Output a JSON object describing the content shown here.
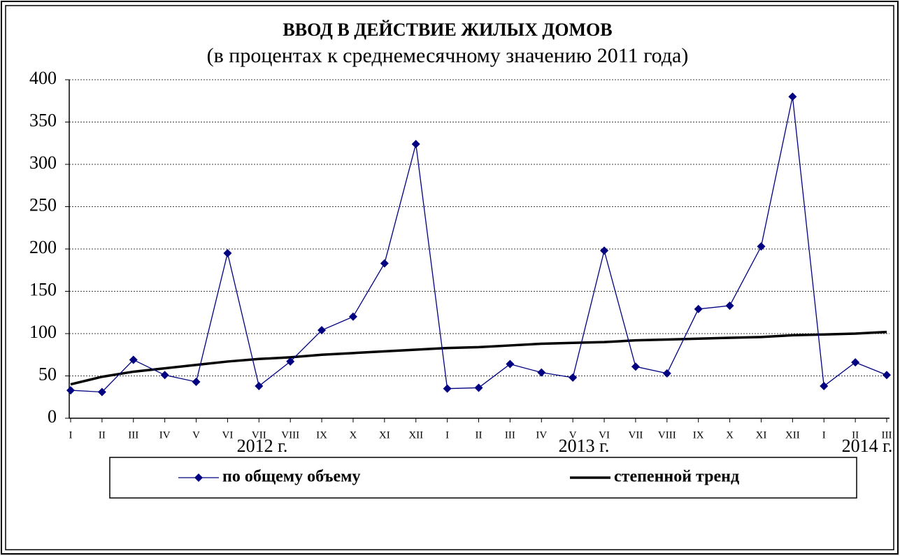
{
  "chart_data": {
    "type": "line",
    "title": "ВВОД  В  ДЕЙСТВИЕ  ЖИЛЫХ  ДОМОВ",
    "subtitle": "(в процентах  к среднемесячному  значению 2011 года)",
    "categories": [
      "I",
      "II",
      "III",
      "IV",
      "V",
      "VI",
      "VII",
      "VIII",
      "IX",
      "X",
      "XI",
      "XII",
      "I",
      "II",
      "III",
      "IV",
      "V",
      "VI",
      "VII",
      "VIII",
      "IX",
      "X",
      "XI",
      "XII",
      "I",
      "II",
      "III"
    ],
    "year_labels": [
      "2012 г.",
      "2013 г.",
      "2014 г."
    ],
    "series": [
      {
        "name": "по общему объему",
        "color": "#000080",
        "marker": "diamond",
        "values": [
          33,
          31,
          69,
          51,
          43,
          195,
          38,
          67,
          104,
          120,
          183,
          324,
          35,
          36,
          64,
          54,
          48,
          198,
          61,
          53,
          129,
          133,
          203,
          380,
          38,
          66,
          51
        ]
      },
      {
        "name": "степенной тренд",
        "color": "#000000",
        "marker": "none",
        "values": [
          40,
          49,
          55,
          59,
          63,
          67,
          70,
          72,
          75,
          77,
          79,
          81,
          83,
          84,
          86,
          88,
          89,
          90,
          92,
          93,
          94,
          95,
          96,
          98,
          99,
          100,
          102
        ]
      }
    ],
    "ylim": [
      0,
      400
    ],
    "yticks": [
      0,
      50,
      100,
      150,
      200,
      250,
      300,
      350,
      400
    ],
    "grid": true
  }
}
